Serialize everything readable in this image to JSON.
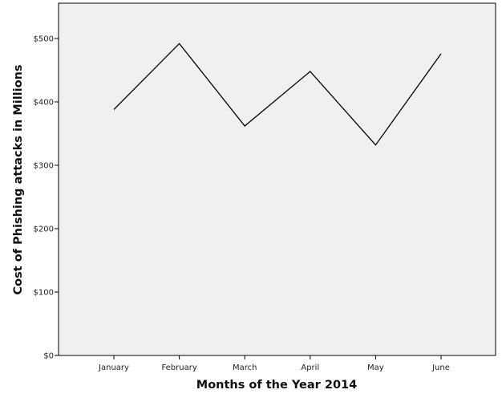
{
  "chart_data": {
    "type": "line",
    "title": "",
    "xlabel": "Months of the Year 2014",
    "ylabel": "Cost of Phishing attacks in Millions",
    "categories": [
      "January",
      "February",
      "March",
      "April",
      "May",
      "June"
    ],
    "series": [
      {
        "values": [
          388,
          492,
          362,
          448,
          332,
          476
        ]
      }
    ],
    "ylim": [
      0,
      550
    ],
    "yticks": [
      0,
      100,
      200,
      300,
      400,
      500
    ],
    "ytick_labels": [
      "$0",
      "$100",
      "$200",
      "$300",
      "$400",
      "$500"
    ],
    "grid": false,
    "legend": "none",
    "colors": {
      "plot_background": "#f0f0f0",
      "line": "#000000",
      "axis": "#000000"
    }
  }
}
